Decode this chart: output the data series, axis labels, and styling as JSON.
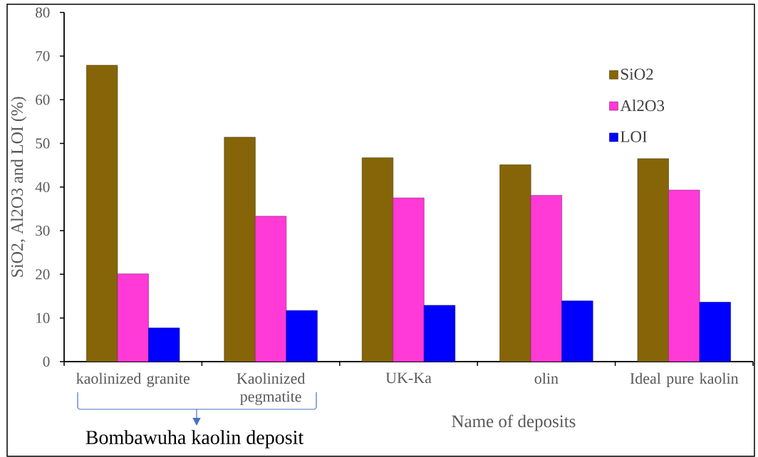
{
  "chart_data": {
    "type": "bar",
    "xlabel": "Name of deposits",
    "ylabel": "SiO2, Al2O3 and LOI (%)",
    "categories": [
      "kaolinized granite",
      "Kaolinized pegmatite",
      "UK-Ka",
      "olin",
      "Ideal pure kaolin"
    ],
    "series": [
      {
        "name": "SiO2",
        "color": "#866508",
        "values": [
          67.9,
          51.4,
          46.7,
          45.1,
          46.5
        ]
      },
      {
        "name": "Al2O3",
        "color": "#ff3ad6",
        "values": [
          20.1,
          33.3,
          37.5,
          38.1,
          39.3
        ]
      },
      {
        "name": "LOI",
        "color": "#0000ff",
        "values": [
          7.7,
          11.7,
          12.9,
          13.9,
          13.6
        ]
      }
    ],
    "ylim": [
      0,
      80
    ],
    "yticks": [
      0,
      10,
      20,
      30,
      40,
      50,
      60,
      70,
      80
    ],
    "legend": "top right",
    "annotations": [
      "Bombawuha kaolin deposit"
    ]
  }
}
